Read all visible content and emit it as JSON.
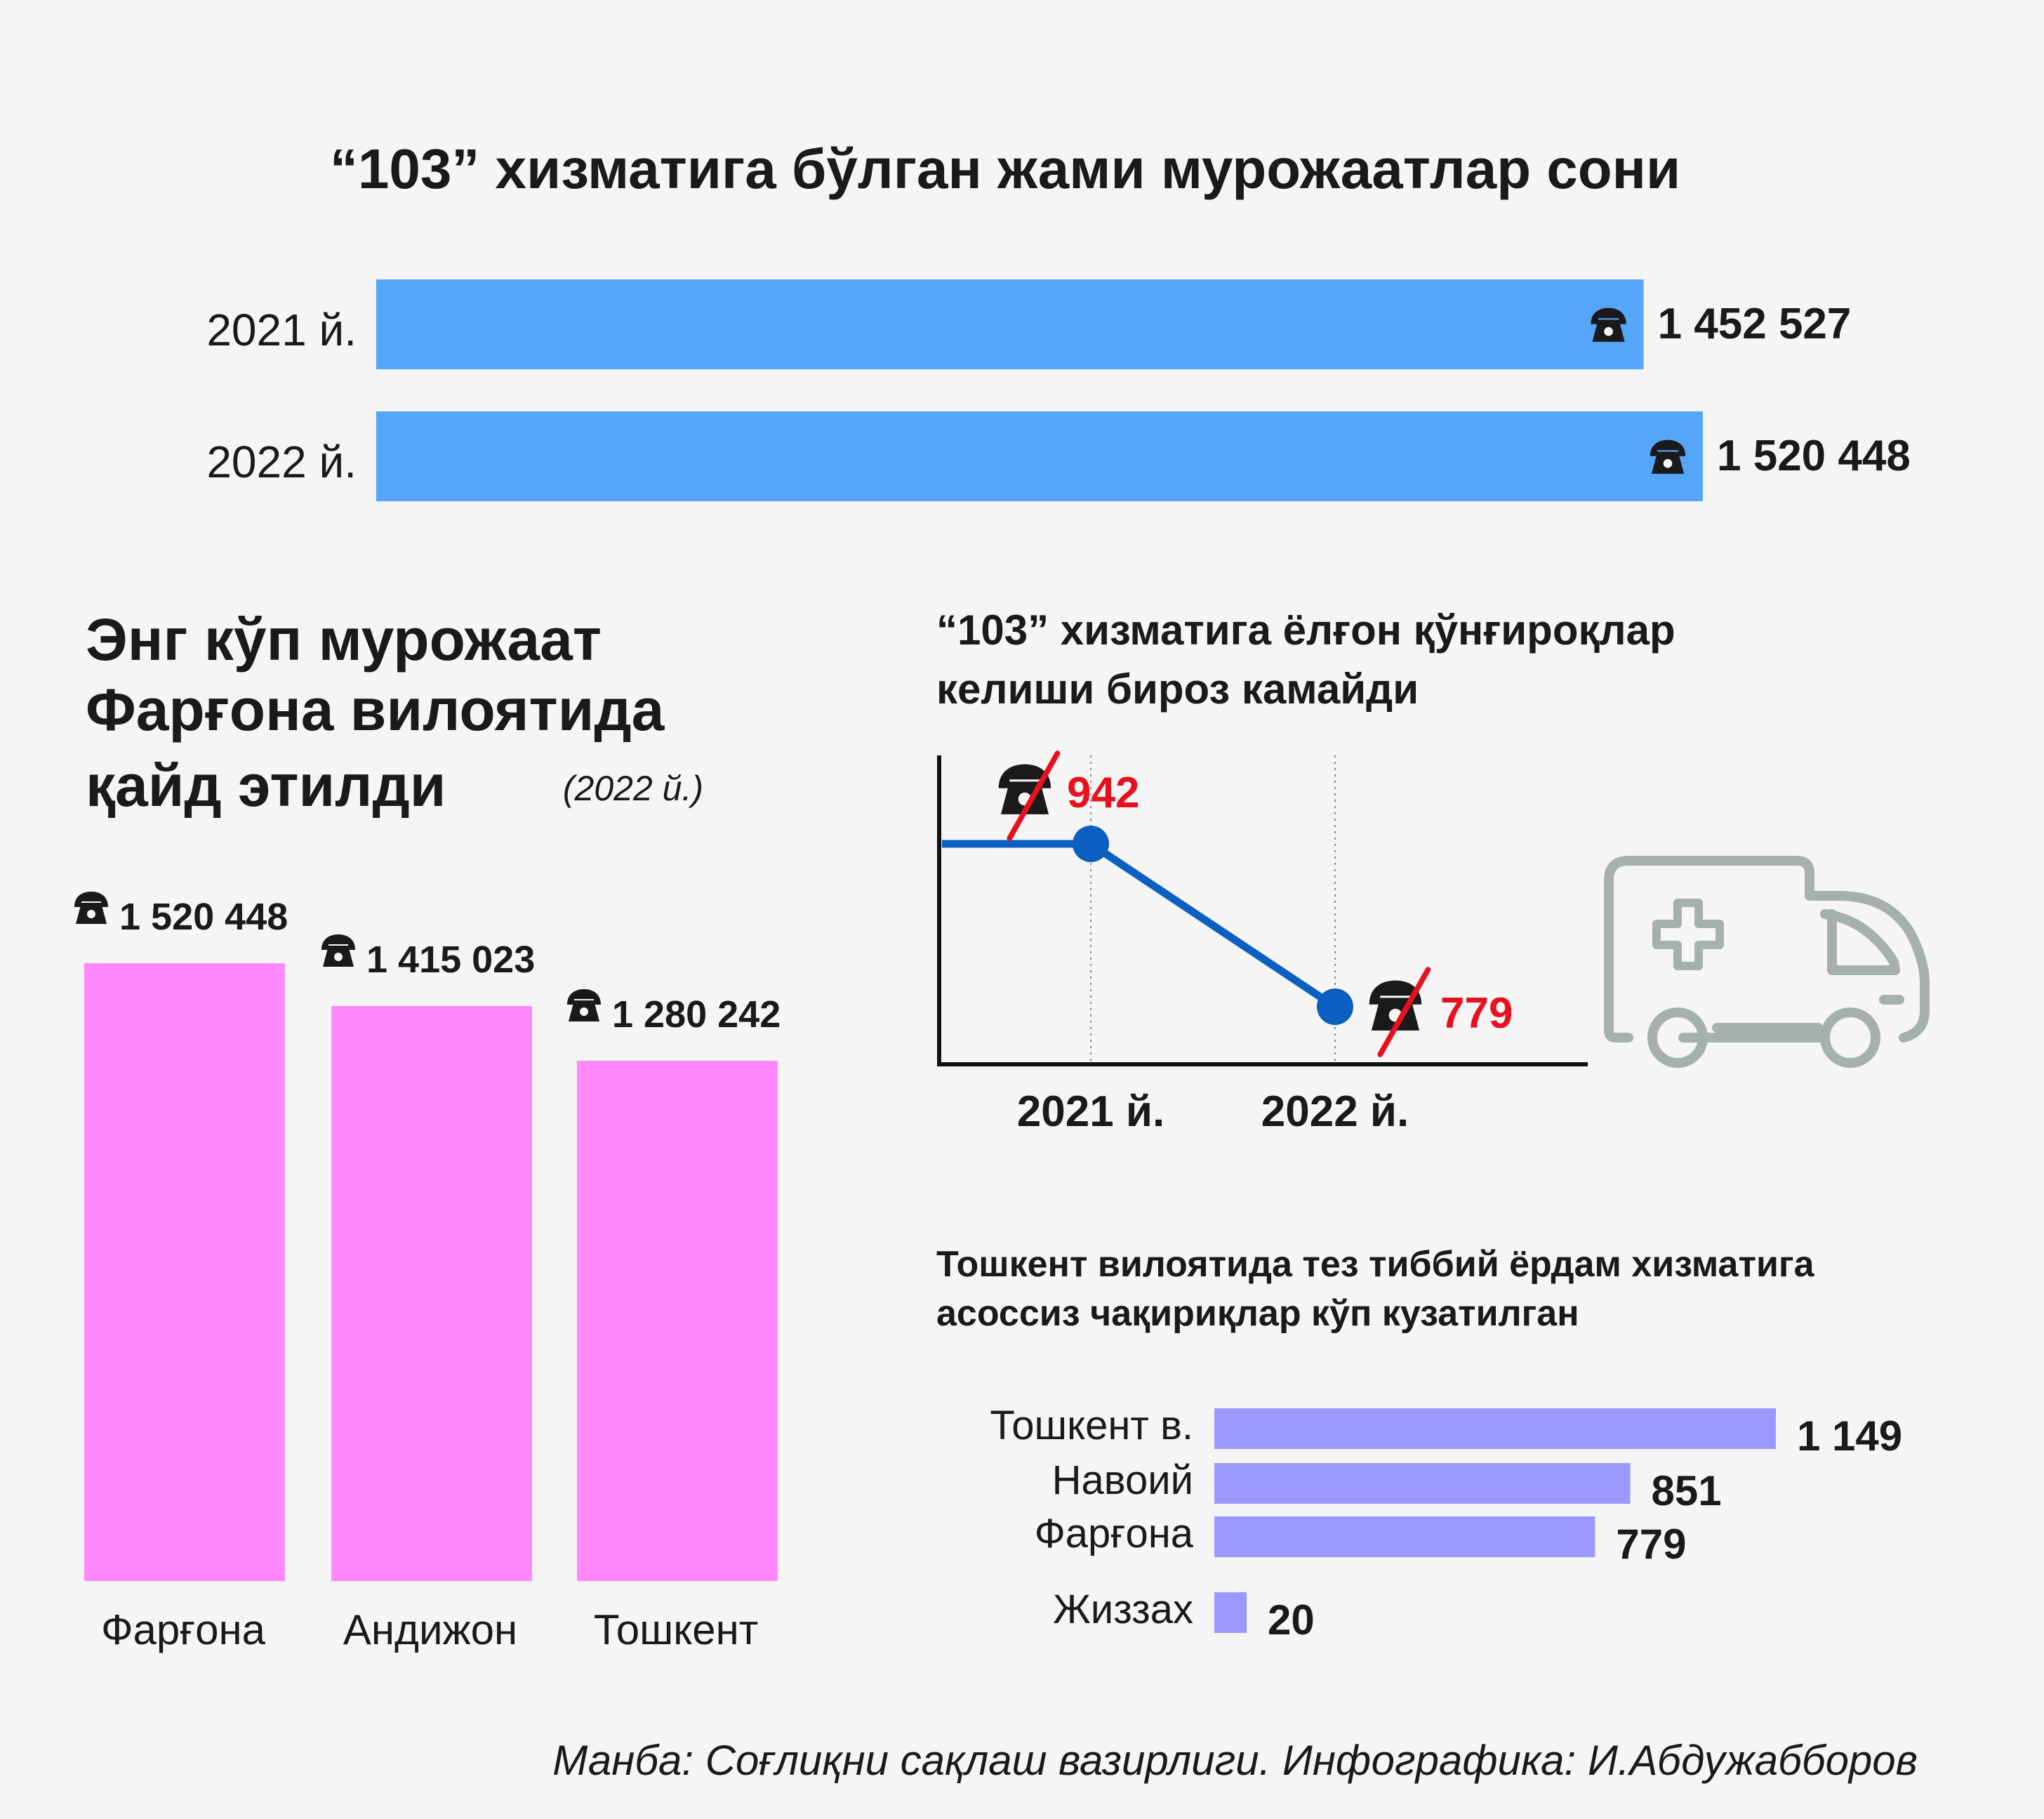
{
  "colors": {
    "background": "#f5f5f5",
    "totals_bar": "#55a5fb",
    "regions_bar": "#ff88fb",
    "line": "#0b5fc1",
    "highlight_text": "#e8101f",
    "unfounded_bar": "#9999ff",
    "ambulance_icon": "#a6b1ae",
    "text": "#1a1a1a"
  },
  "icons": {
    "phone": "telephone-icon",
    "ambulance": "ambulance-icon"
  },
  "source": "Манба: Соғлиқни сақлаш вазирлиги. Инфографика: И.Абдужабборов",
  "chart_data": [
    {
      "id": "totals",
      "type": "bar",
      "orientation": "horizontal",
      "title": "“103” хизматига бўлган жами мурожаатлар сони",
      "categories": [
        "2021 й.",
        "2022 й."
      ],
      "values": [
        1452527,
        1520448
      ],
      "labels": [
        "1 452 527",
        "1 520 448"
      ],
      "xlim": [
        0,
        1520448
      ]
    },
    {
      "id": "regions",
      "type": "bar",
      "orientation": "vertical",
      "title": "Энг кўп мурожаат Фарғона вилоятида қайд этилди",
      "title_lines": [
        "Энг кўп мурожаат",
        "Фарғона вилоятида",
        "қайд этилди"
      ],
      "subtitle": "(2022 й.)",
      "categories": [
        "Фарғона",
        "Андижон",
        "Тошкент"
      ],
      "values": [
        1520448,
        1415023,
        1280242
      ],
      "labels": [
        "1 520 448",
        "1 415 023",
        "1 280 242"
      ],
      "ylim": [
        0,
        1520448
      ]
    },
    {
      "id": "calls",
      "type": "line",
      "title": "“103” хизматига ёлғон қўнғироқлар келиши бироз камайди",
      "title_lines": [
        "“103” хизматига ёлғон қўнғироқлар",
        "келиши бироз камайди"
      ],
      "x": [
        "2021 й.",
        "2022 й."
      ],
      "y": [
        942,
        779
      ],
      "labels": [
        "942",
        "779"
      ],
      "grid": "vertical dotted"
    },
    {
      "id": "unfounded",
      "type": "bar",
      "orientation": "horizontal",
      "title": "Тошкент вилоятида тез тиббий ёрдам хизматига асоссиз чақириқлар кўп кузатилган",
      "title_lines": [
        "Тошкент вилоятида тез тиббий ёрдам хизматига",
        "асоссиз чақириқлар кўп кузатилган"
      ],
      "categories": [
        "Тошкент в.",
        "Навоий",
        "Фарғона",
        "Жиззах"
      ],
      "values": [
        1149,
        851,
        779,
        20
      ],
      "labels": [
        "1 149",
        "851",
        "779",
        "20"
      ],
      "xlim": [
        0,
        1149
      ]
    }
  ]
}
